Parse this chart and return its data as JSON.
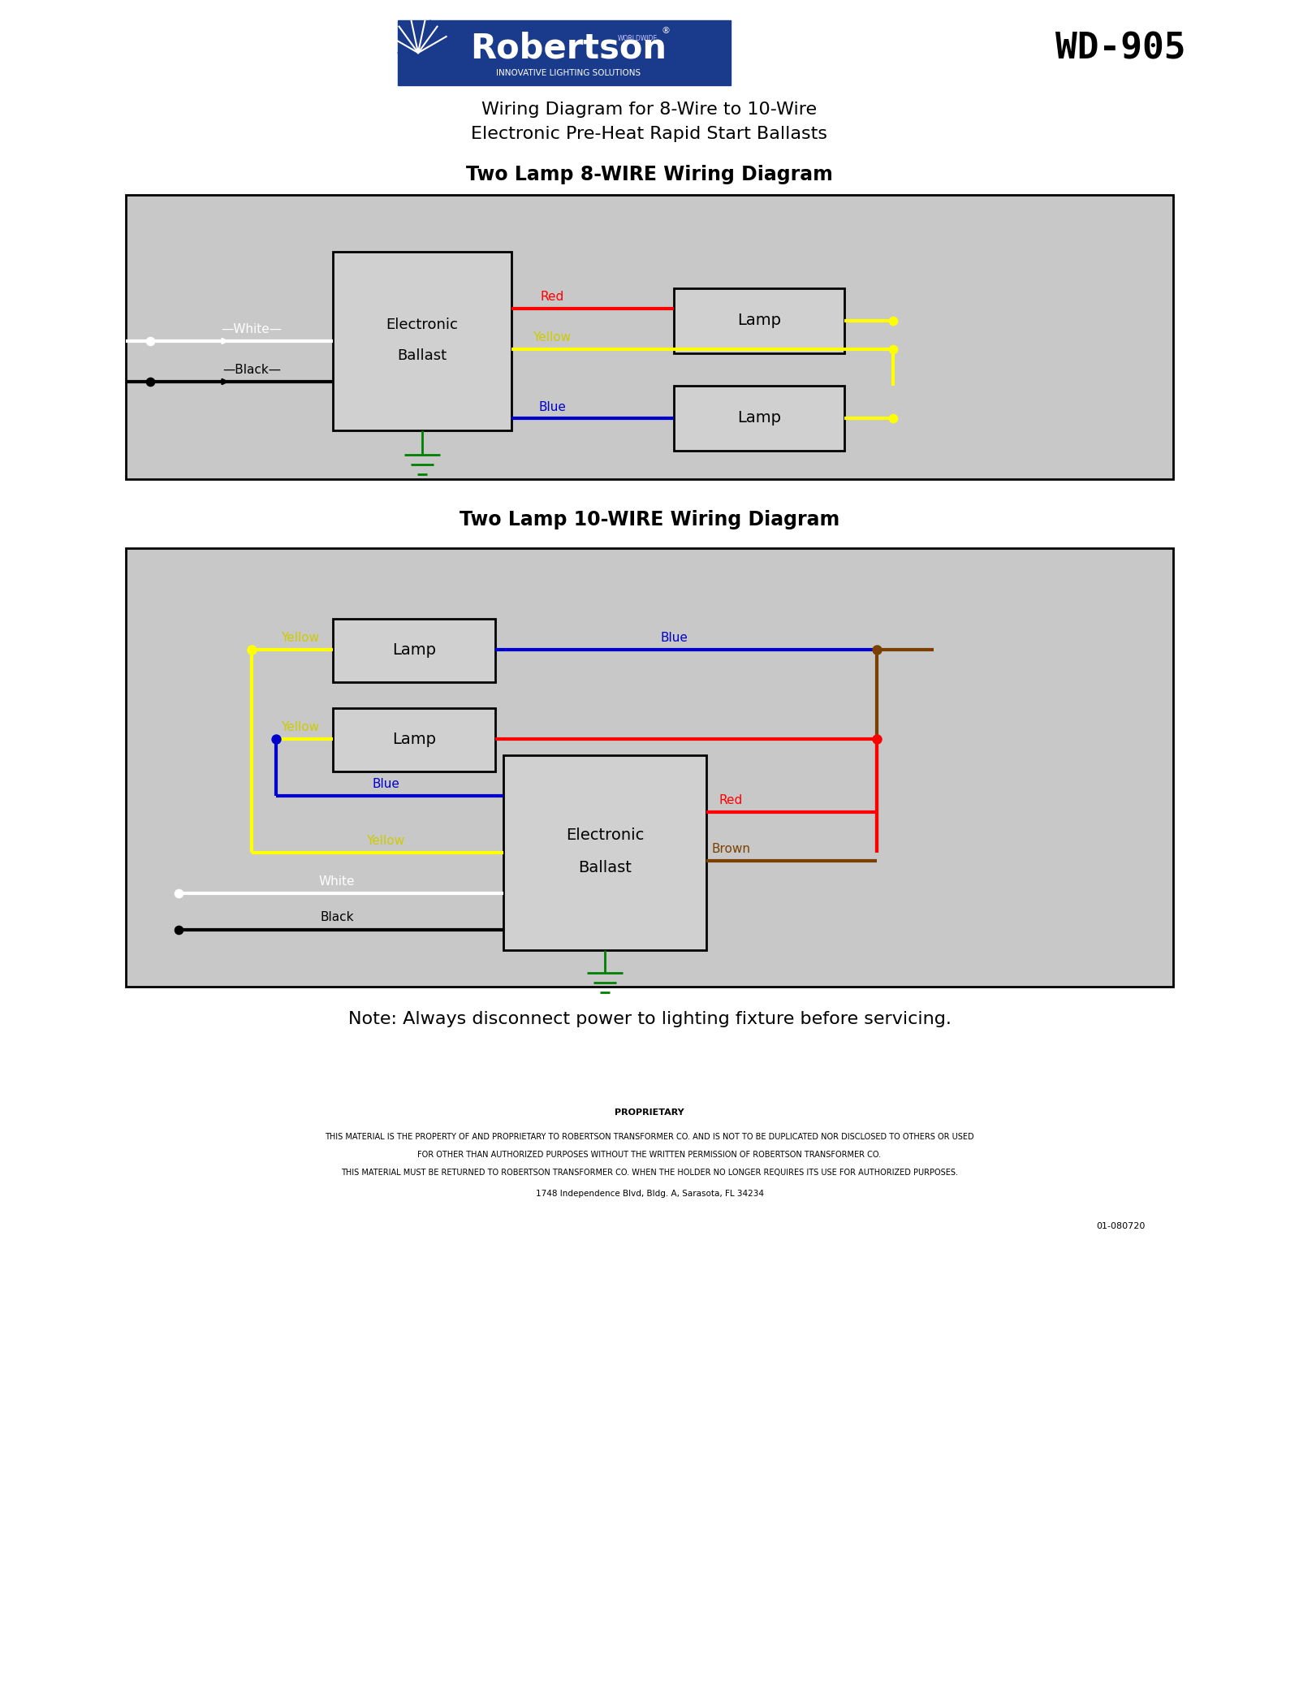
{
  "title_main_1": "Wiring Diagram for 8-Wire to 10-Wire",
  "title_main_2": "Electronic Pre-Heat Rapid Start Ballasts",
  "wd_code": "WD-905",
  "diagram1_title": "Two Lamp 8-WIRE Wiring Diagram",
  "diagram2_title": "Two Lamp 10-WIRE Wiring Diagram",
  "note": "Note: Always disconnect power to lighting fixture before servicing.",
  "prop1": "PROPRIETARY",
  "prop2": "THIS MATERIAL IS THE PROPERTY OF AND PROPRIETARY TO ROBERTSON TRANSFORMER CO. AND IS NOT TO BE DUPLICATED NOR DISCLOSED TO OTHERS OR USED",
  "prop3": "FOR OTHER THAN AUTHORIZED PURPOSES WITHOUT THE WRITTEN PERMISSION OF ROBERTSON TRANSFORMER CO.",
  "prop4": "THIS MATERIAL MUST BE RETURNED TO ROBERTSON TRANSFORMER CO. WHEN THE HOLDER NO LONGER REQUIRES ITS USE FOR AUTHORIZED PURPOSES.",
  "prop5": "1748 Independence Blvd, Bldg. A, Sarasota, FL 34234",
  "doc_number": "01-080720",
  "bg_color": "#ffffff",
  "diagram_bg": "#c8c8c8",
  "box_fill": "#d0d0d0",
  "wire_red": "#ff0000",
  "wire_yellow": "#ffff00",
  "wire_blue": "#0000cc",
  "wire_white": "#ffffff",
  "wire_black": "#000000",
  "wire_brown": "#7B3F00",
  "wire_green": "#008000",
  "label_red": "#ff0000",
  "label_yellow": "#cccc00",
  "label_blue": "#0000cc",
  "label_brown": "#7B3F00"
}
